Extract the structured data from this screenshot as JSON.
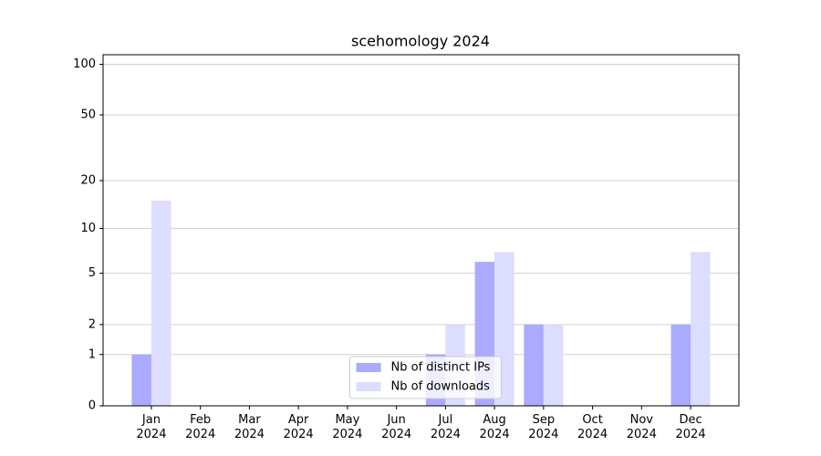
{
  "chart_data": {
    "type": "bar",
    "title": "scehomology 2024",
    "categories": [
      "Jan 2024",
      "Feb 2024",
      "Mar 2024",
      "Apr 2024",
      "May 2024",
      "Jun 2024",
      "Jul 2024",
      "Aug 2024",
      "Sep 2024",
      "Oct 2024",
      "Nov 2024",
      "Dec 2024"
    ],
    "series": [
      {
        "name": "Nb of distinct IPs",
        "color": "#aaaaff",
        "values": [
          1,
          0,
          0,
          0,
          0,
          0,
          1,
          6,
          2,
          0,
          0,
          2
        ]
      },
      {
        "name": "Nb of downloads",
        "color": "#ddddff",
        "values": [
          15,
          0,
          0,
          0,
          0,
          0,
          2,
          7,
          2,
          0,
          0,
          7
        ]
      }
    ],
    "yscale": "log1p",
    "ylim": [
      0,
      114
    ],
    "yticks": [
      0,
      1,
      2,
      5,
      10,
      20,
      50,
      100
    ],
    "grid": true,
    "legend": "lower center"
  }
}
